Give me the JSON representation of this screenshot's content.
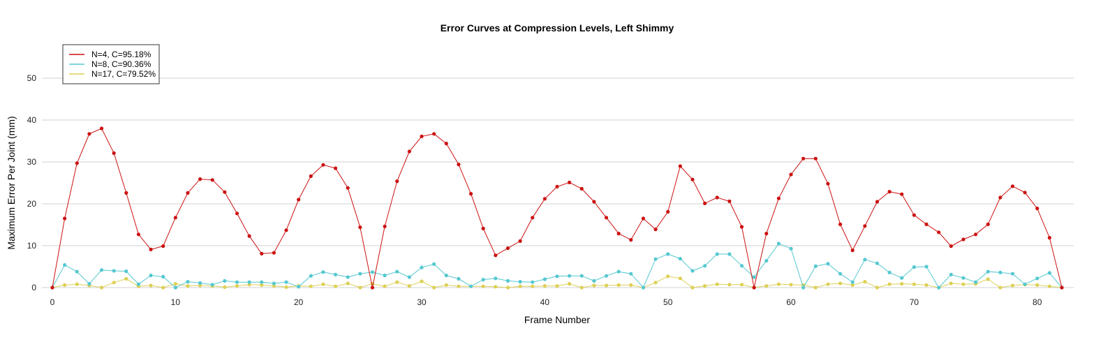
{
  "chart_data": {
    "type": "line",
    "title": "Error Curves at Compression Levels, Left Shimmy",
    "xlabel": "Frame Number",
    "ylabel": "Maximum Error Per Joint (mm)",
    "xlim": [
      0,
      82
    ],
    "ylim": [
      0,
      50
    ],
    "x_ticks": [
      0,
      10,
      20,
      30,
      40,
      50,
      60,
      70,
      80
    ],
    "y_ticks": [
      0,
      10,
      20,
      30,
      40,
      50
    ],
    "grid": "horizontal",
    "legend_position": "top-left",
    "x": [
      0,
      1,
      2,
      3,
      4,
      5,
      6,
      7,
      8,
      9,
      10,
      11,
      12,
      13,
      14,
      15,
      16,
      17,
      18,
      19,
      20,
      21,
      22,
      23,
      24,
      25,
      26,
      27,
      28,
      29,
      30,
      31,
      32,
      33,
      34,
      35,
      36,
      37,
      38,
      39,
      40,
      41,
      42,
      43,
      44,
      45,
      46,
      47,
      48,
      49,
      50,
      51,
      52,
      53,
      54,
      55,
      56,
      57,
      58,
      59,
      60,
      61,
      62,
      63,
      64,
      65,
      66,
      67,
      68,
      69,
      70,
      71,
      72,
      73,
      74,
      75,
      76,
      77,
      78,
      79,
      80,
      81,
      82
    ],
    "series": [
      {
        "name": "N=4, C=95.18%",
        "color": "#cc1111",
        "values": [
          0,
          16.5,
          29.7,
          36.7,
          38.0,
          32.1,
          22.6,
          12.7,
          9.1,
          9.9,
          16.7,
          22.6,
          25.9,
          25.7,
          22.8,
          17.7,
          12.3,
          8.1,
          8.3,
          13.7,
          21.0,
          26.6,
          29.3,
          28.5,
          23.8,
          14.4,
          0,
          14.6,
          25.4,
          32.5,
          36.1,
          36.7,
          34.4,
          29.4,
          22.4,
          14.1,
          7.7,
          9.4,
          11.1,
          16.7,
          21.2,
          24.1,
          25.1,
          23.6,
          20.5,
          16.7,
          12.9,
          11.4,
          16.5,
          13.9,
          18.1,
          29.0,
          25.8,
          20.1,
          21.5,
          20.6,
          14.5,
          0,
          12.9,
          21.3,
          27.0,
          30.8,
          30.8,
          24.8,
          15.1,
          8.9,
          14.7,
          20.5,
          22.9,
          22.3,
          17.3,
          15.1,
          13.2,
          9.9,
          11.5,
          12.7,
          15.1,
          21.5,
          24.2,
          22.7,
          18.9,
          11.9,
          0
        ]
      },
      {
        "name": "N=8, C=90.36%",
        "color": "#55c8d0",
        "values": [
          0,
          5.4,
          3.8,
          0.9,
          4.2,
          4.0,
          3.9,
          0.8,
          2.9,
          2.6,
          0,
          1.4,
          1.1,
          0.7,
          1.6,
          1.3,
          1.3,
          1.3,
          1.0,
          1.3,
          0.2,
          2.8,
          3.7,
          3.1,
          2.5,
          3.3,
          3.7,
          2.9,
          3.8,
          2.5,
          4.8,
          5.6,
          2.9,
          2.1,
          0.3,
          1.9,
          2.2,
          1.6,
          1.4,
          1.3,
          2.0,
          2.7,
          2.8,
          2.8,
          1.6,
          2.8,
          3.8,
          3.3,
          0,
          6.8,
          8.0,
          6.9,
          4.0,
          5.2,
          8.0,
          8.0,
          5.2,
          2.5,
          6.4,
          10.5,
          9.3,
          0,
          5.1,
          5.7,
          3.3,
          1.3,
          6.7,
          5.8,
          3.6,
          2.3,
          4.9,
          5.0,
          0,
          3.1,
          2.3,
          1.3,
          3.8,
          3.6,
          3.3,
          0.8,
          2.2,
          3.5,
          0
        ]
      },
      {
        "name": "N=17, C=79.52%",
        "color": "#ddd055",
        "values": [
          0,
          0.6,
          0.8,
          0.5,
          0,
          1.2,
          2.1,
          0.3,
          0.5,
          0,
          0.9,
          0.4,
          0.5,
          0.4,
          0.1,
          0.4,
          0.7,
          0.6,
          0.4,
          0.1,
          0.4,
          0.3,
          0.8,
          0.3,
          1.0,
          0,
          0.9,
          0.3,
          1.3,
          0.4,
          1.5,
          0,
          0.6,
          0.3,
          0.3,
          0.3,
          0.2,
          0,
          0.3,
          0.3,
          0.4,
          0.4,
          0.9,
          0,
          0.5,
          0.5,
          0.6,
          0.6,
          0,
          1.2,
          2.7,
          2.2,
          0,
          0.4,
          0.8,
          0.7,
          0.7,
          0,
          0.4,
          0.8,
          0.7,
          0.6,
          0,
          0.8,
          1.0,
          0.6,
          1.4,
          0,
          0.8,
          0.9,
          0.8,
          0.6,
          0,
          1.0,
          0.8,
          0.9,
          2.0,
          0,
          0.5,
          0.7,
          0.6,
          0.3,
          0
        ]
      }
    ]
  }
}
